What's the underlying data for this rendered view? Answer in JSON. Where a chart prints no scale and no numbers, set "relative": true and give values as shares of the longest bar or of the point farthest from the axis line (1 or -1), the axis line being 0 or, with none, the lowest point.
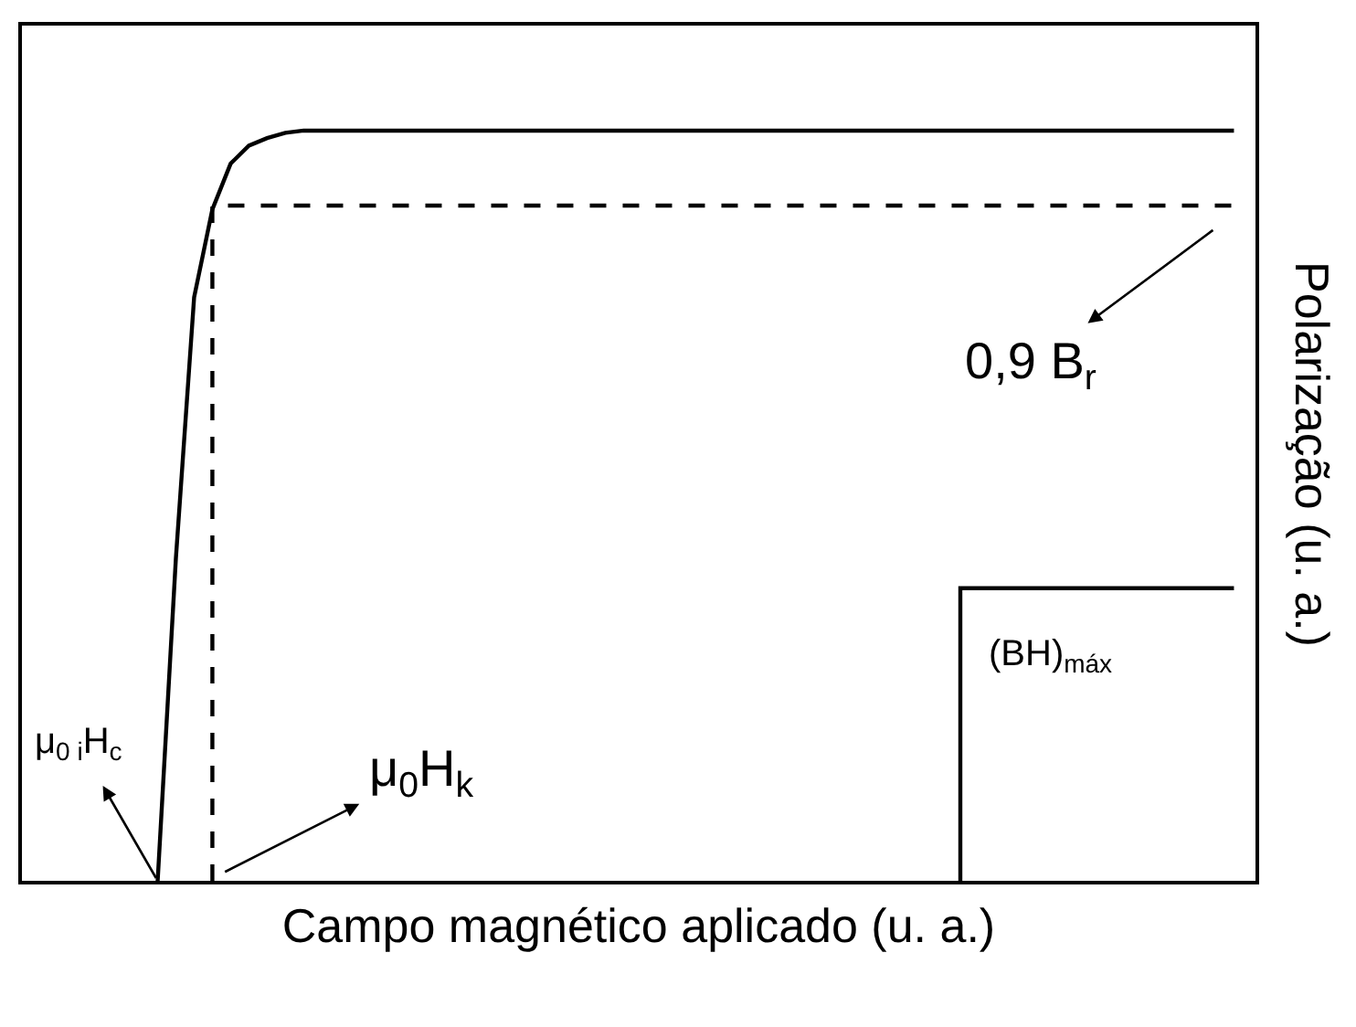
{
  "chart_data": {
    "type": "line",
    "relative": true,
    "xlabel": "Campo magnético aplicado (u. a.)",
    "ylabel": "Polarização (u. a.)",
    "categories": [
      null,
      null,
      null,
      null,
      null,
      null,
      null,
      null,
      null,
      null,
      null,
      null,
      null,
      null,
      null,
      null,
      null,
      null,
      null,
      null,
      null,
      null,
      null,
      null,
      null,
      null,
      null,
      null,
      null,
      null,
      null,
      null,
      null,
      null,
      null,
      null,
      null,
      null,
      null,
      null,
      null,
      null,
      null,
      null,
      null,
      null,
      null,
      null,
      null,
      null,
      null,
      null,
      null,
      null,
      null,
      null,
      null,
      null,
      null,
      null
    ],
    "marker": "none",
    "series": [
      {
        "color": "#000000",
        "line_style": "solid",
        "values": [
          0,
          0.43,
          0.778,
          0.895,
          0.956,
          0.98,
          0.99,
          0.997,
          1,
          1,
          1,
          1,
          1,
          1,
          1,
          1,
          1,
          1,
          1,
          1,
          1,
          1,
          1,
          1,
          1,
          1,
          1,
          1,
          1,
          1,
          1,
          1,
          1,
          1,
          1,
          1,
          1,
          1,
          1,
          1,
          1,
          1,
          1,
          1,
          1,
          1,
          1,
          1,
          1,
          1,
          1,
          1,
          1,
          1,
          1,
          1,
          1,
          1,
          1,
          1
        ]
      },
      {
        "type": "step",
        "color": "#000000",
        "line_style": "dashed",
        "values": [
          null,
          null,
          null,
          0,
          0.9,
          0.9,
          0.9,
          0.9,
          0.9,
          0.9,
          0.9,
          0.9,
          0.9,
          0.9,
          0.9,
          0.9,
          0.9,
          0.9,
          0.9,
          0.9,
          0.9,
          0.9,
          0.9,
          0.9,
          0.9,
          0.9,
          0.9,
          0.9,
          0.9,
          0.9,
          0.9,
          0.9,
          0.9,
          0.9,
          0.9,
          0.9,
          0.9,
          0.9,
          0.9,
          0.9,
          0.9,
          0.9,
          0.9,
          0.9,
          0.9,
          0.9,
          0.9,
          0.9,
          0.9,
          0.9,
          0.9,
          0.9,
          0.9,
          0.9,
          0.9,
          0.9,
          0.9,
          0.9,
          0.9,
          0.9
        ]
      },
      {
        "type": "step",
        "color": "#000000",
        "line_style": "solid",
        "values": [
          null,
          null,
          null,
          null,
          null,
          null,
          null,
          null,
          null,
          null,
          null,
          null,
          null,
          null,
          null,
          null,
          null,
          null,
          null,
          null,
          null,
          null,
          null,
          null,
          null,
          null,
          null,
          null,
          null,
          null,
          null,
          null,
          null,
          null,
          null,
          null,
          null,
          null,
          null,
          null,
          null,
          null,
          null,
          null,
          0,
          0.39,
          0.39,
          0.39,
          0.39,
          0.39,
          0.39,
          0.39,
          0.39,
          0.39,
          0.39,
          0.39,
          0.39,
          0.39,
          0.39,
          0.39
        ]
      }
    ],
    "annotations": [
      "0,9 B$_{r}$",
      "μ$_{0 i}$H$_{c}$",
      "μ$_{0}$H$_{k}$",
      "(BH)$_{máx}$"
    ]
  }
}
